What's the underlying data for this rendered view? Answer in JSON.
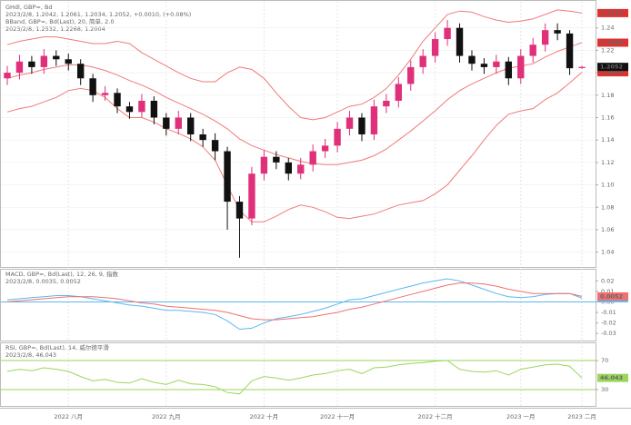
{
  "chart_data": [
    {
      "type": "candlestick",
      "header": [
        {
          "text": "GHdl, GBP=, Bd",
          "color": "#1f3d7a"
        },
        {
          "text": "2023/2/8, 1.2042, 1.2061, 1.2034, 1.2052, +0.0010, (+0.08%)",
          "color": "#2a6fd6"
        },
        {
          "text": "BBand, GBP=, Bd(Last), 20, 简单, 2.0",
          "color": "#e03030"
        },
        {
          "text": "2023/2/8, 1.2532, 1.2268, 1.2004",
          "color": "#e03030"
        }
      ],
      "categories": [
        null,
        null,
        null,
        null,
        null,
        "2022 八月",
        null,
        null,
        null,
        null,
        null,
        null,
        null,
        "2022 九月",
        null,
        null,
        null,
        null,
        null,
        null,
        null,
        "2022 十月",
        null,
        null,
        null,
        null,
        null,
        "2022 十一月",
        null,
        null,
        null,
        null,
        null,
        null,
        null,
        "2022 十二月",
        null,
        null,
        null,
        null,
        null,
        null,
        "2023 一月",
        null,
        null,
        null,
        null,
        "2023 二月"
      ],
      "open": [
        1.195,
        1.2,
        1.21,
        1.205,
        1.215,
        1.212,
        1.208,
        1.195,
        1.18,
        1.182,
        1.17,
        1.165,
        1.175,
        1.16,
        1.15,
        1.16,
        1.145,
        1.14,
        1.13,
        1.085,
        1.07,
        1.11,
        1.125,
        1.12,
        1.11,
        1.118,
        1.13,
        1.135,
        1.15,
        1.16,
        1.145,
        1.17,
        1.175,
        1.19,
        1.205,
        1.215,
        1.23,
        1.24,
        1.215,
        1.208,
        1.205,
        1.21,
        1.195,
        1.215,
        1.225,
        1.238,
        1.235,
        1.2042
      ],
      "high": [
        1.206,
        1.216,
        1.215,
        1.221,
        1.22,
        1.217,
        1.212,
        1.199,
        1.188,
        1.186,
        1.174,
        1.181,
        1.179,
        1.164,
        1.166,
        1.164,
        1.15,
        1.146,
        1.134,
        1.09,
        1.116,
        1.131,
        1.13,
        1.124,
        1.124,
        1.136,
        1.141,
        1.156,
        1.166,
        1.164,
        1.176,
        1.181,
        1.196,
        1.211,
        1.221,
        1.236,
        1.247,
        1.244,
        1.22,
        1.213,
        1.216,
        1.214,
        1.221,
        1.231,
        1.244,
        1.244,
        1.238,
        1.2061
      ],
      "low": [
        1.189,
        1.194,
        1.199,
        1.199,
        1.206,
        1.202,
        1.189,
        1.174,
        1.175,
        1.164,
        1.159,
        1.16,
        1.154,
        1.144,
        1.145,
        1.139,
        1.134,
        1.122,
        1.06,
        1.035,
        1.064,
        1.104,
        1.114,
        1.104,
        1.105,
        1.112,
        1.124,
        1.129,
        1.144,
        1.139,
        1.14,
        1.164,
        1.169,
        1.184,
        1.199,
        1.209,
        1.224,
        1.209,
        1.202,
        1.199,
        1.199,
        1.189,
        1.19,
        1.209,
        1.219,
        1.229,
        1.198,
        1.2034
      ],
      "close": [
        1.2,
        1.21,
        1.205,
        1.215,
        1.212,
        1.208,
        1.195,
        1.18,
        1.182,
        1.17,
        1.165,
        1.175,
        1.16,
        1.15,
        1.16,
        1.145,
        1.14,
        1.13,
        1.085,
        1.07,
        1.11,
        1.125,
        1.12,
        1.11,
        1.118,
        1.13,
        1.135,
        1.15,
        1.16,
        1.145,
        1.17,
        1.175,
        1.19,
        1.205,
        1.215,
        1.23,
        1.24,
        1.215,
        1.208,
        1.205,
        1.21,
        1.195,
        1.215,
        1.225,
        1.238,
        1.235,
        1.204,
        1.2052
      ],
      "up_color": "#e0307a",
      "down_color": "#111111",
      "badge_color": "#111111",
      "series": [
        {
          "color": "#f07a7a",
          "values": [
            1.225,
            1.228,
            1.23,
            1.232,
            1.232,
            1.23,
            1.228,
            1.226,
            1.226,
            1.228,
            1.226,
            1.218,
            1.212,
            1.206,
            1.2,
            1.195,
            1.192,
            1.192,
            1.2,
            1.205,
            1.203,
            1.195,
            1.182,
            1.17,
            1.16,
            1.158,
            1.16,
            1.165,
            1.17,
            1.172,
            1.178,
            1.186,
            1.198,
            1.212,
            1.228,
            1.24,
            1.252,
            1.255,
            1.254,
            1.25,
            1.247,
            1.245,
            1.246,
            1.248,
            1.252,
            1.256,
            1.255,
            1.2532
          ]
        },
        {
          "color": "#f07a7a",
          "values": [
            1.195,
            1.198,
            1.2,
            1.203,
            1.205,
            1.207,
            1.207,
            1.205,
            1.202,
            1.198,
            1.193,
            1.189,
            1.184,
            1.178,
            1.173,
            1.168,
            1.163,
            1.157,
            1.15,
            1.141,
            1.135,
            1.131,
            1.127,
            1.124,
            1.121,
            1.119,
            1.118,
            1.118,
            1.12,
            1.122,
            1.126,
            1.132,
            1.14,
            1.148,
            1.157,
            1.166,
            1.176,
            1.184,
            1.19,
            1.195,
            1.2,
            1.204,
            1.206,
            1.208,
            1.214,
            1.219,
            1.223,
            1.2268
          ]
        },
        {
          "color": "#f07a7a",
          "values": [
            1.165,
            1.168,
            1.17,
            1.174,
            1.178,
            1.184,
            1.186,
            1.184,
            1.178,
            1.168,
            1.16,
            1.16,
            1.156,
            1.15,
            1.146,
            1.141,
            1.134,
            1.122,
            1.1,
            1.077,
            1.067,
            1.067,
            1.072,
            1.078,
            1.082,
            1.08,
            1.076,
            1.071,
            1.07,
            1.072,
            1.074,
            1.078,
            1.082,
            1.084,
            1.086,
            1.092,
            1.1,
            1.113,
            1.126,
            1.14,
            1.153,
            1.163,
            1.166,
            1.168,
            1.176,
            1.182,
            1.191,
            1.2004
          ]
        }
      ],
      "series_badge_color": "#e03030",
      "ylim": [
        1.03,
        1.26
      ],
      "yticks": [
        1.04,
        1.06,
        1.08,
        {
          "value": 1.1,
          "label": "1.10"
        },
        1.12,
        1.14,
        1.16,
        1.18,
        {
          "value": 1.2,
          "label": "1.20"
        },
        1.22,
        1.24
      ],
      "grid": true,
      "grid_color": "#eeeeee"
    },
    {
      "type": "line",
      "header": [
        {
          "text": "MACD, GBP=, Bd(Last), 12, 26, 9, 指数",
          "color": "#1f3d7a"
        },
        {
          "text": "2023/2/8, 0.0035, 0.0052",
          "color": "#2a8fd6"
        }
      ],
      "series": [
        {
          "color": "#5bb8f0",
          "values": [
            0.002,
            0.003,
            0.004,
            0.005,
            0.006,
            0.006,
            0.005,
            0.003,
            0.001,
            -0.001,
            -0.003,
            -0.004,
            -0.006,
            -0.008,
            -0.008,
            -0.009,
            -0.01,
            -0.012,
            -0.018,
            -0.026,
            -0.025,
            -0.02,
            -0.016,
            -0.014,
            -0.012,
            -0.009,
            -0.006,
            -0.002,
            0.002,
            0.003,
            0.006,
            0.009,
            0.012,
            0.015,
            0.018,
            0.02,
            0.022,
            0.02,
            0.016,
            0.012,
            0.008,
            0.005,
            0.004,
            0.005,
            0.007,
            0.008,
            0.008,
            0.0035
          ]
        },
        {
          "color": "#f07070",
          "values": [
            0,
            0.001,
            0.002,
            0.003,
            0.004,
            0.005,
            0.005,
            0.005,
            0.004,
            0.003,
            0.001,
            -0.001,
            -0.002,
            -0.004,
            -0.005,
            -0.006,
            -0.007,
            -0.008,
            -0.01,
            -0.013,
            -0.016,
            -0.017,
            -0.017,
            -0.016,
            -0.015,
            -0.014,
            -0.012,
            -0.01,
            -0.007,
            -0.005,
            -0.002,
            0.001,
            0.004,
            0.007,
            0.01,
            0.013,
            0.016,
            0.018,
            0.018,
            0.017,
            0.015,
            0.012,
            0.01,
            0.008,
            0.008,
            0.008,
            0.008,
            0.0052
          ]
        }
      ],
      "baseline": 0,
      "baseline_color": "#5bb8f0",
      "ylim": [
        -0.035,
        0.028
      ],
      "yticks": [
        -0.03,
        -0.02,
        -0.01,
        {
          "value": 0,
          "label": "0.00"
        },
        0.01,
        0.02
      ],
      "grid": false
    },
    {
      "type": "line",
      "header": [
        {
          "text": "RSI, GBP=, Bd(Last), 14, 威尔德平滑",
          "color": "#1f3d7a"
        },
        {
          "text": "2023/2/8, 46.043",
          "color": "#6aa82a"
        }
      ],
      "series": [
        {
          "color": "#9bd65a",
          "values": [
            55,
            58,
            56,
            60,
            58,
            55,
            48,
            42,
            44,
            40,
            39,
            45,
            40,
            37,
            43,
            38,
            37,
            34,
            26,
            24,
            42,
            48,
            46,
            43,
            46,
            50,
            52,
            56,
            58,
            52,
            60,
            61,
            64,
            66,
            67,
            69,
            70,
            58,
            55,
            54,
            56,
            50,
            58,
            61,
            64,
            65,
            62,
            46.043
          ]
        }
      ],
      "ylim": [
        10,
        90
      ],
      "yticks": [
        30,
        70
      ],
      "grid": true,
      "grid_color": "#9bd65a"
    }
  ]
}
